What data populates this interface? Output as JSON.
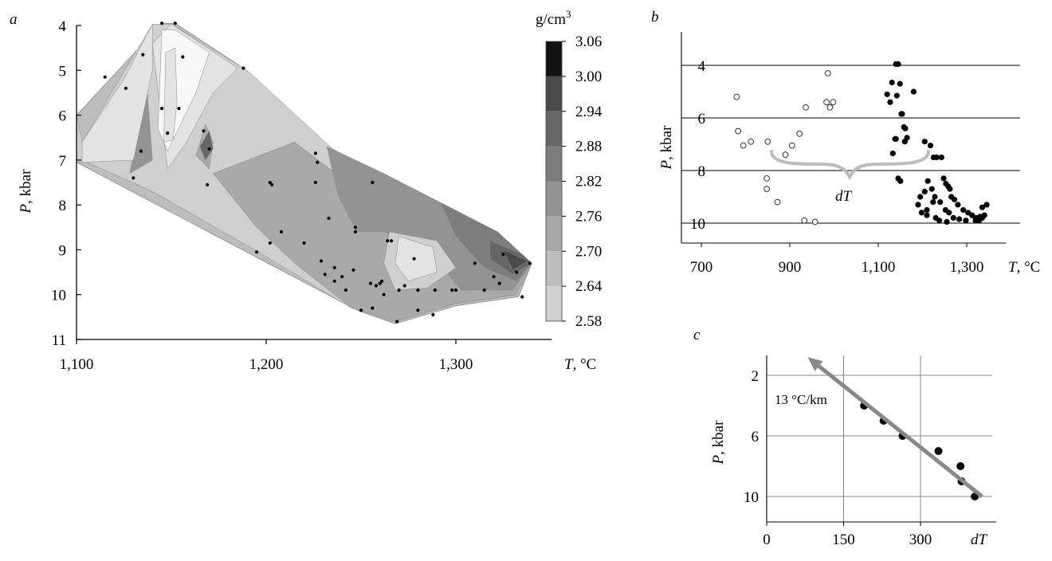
{
  "panel_letters": {
    "a": "a",
    "b": "b",
    "c": "c"
  },
  "colors": {
    "fill_levels": [
      "#e3e3e3",
      "#cfcfcf",
      "#bdbdbd",
      "#a9a9a9",
      "#939393",
      "#7d7d7d",
      "#666666",
      "#4a4a4a",
      "#222222"
    ],
    "highlight": "#f8f8f8",
    "curly": "#bcbcbc",
    "arrow": "#888888"
  },
  "chart_data": [
    {
      "id": "a",
      "type": "heatmap",
      "title": "",
      "xlabel_var": "T",
      "xlabel_unit": ", °C",
      "ylabel_var": "P",
      "ylabel_unit": ", kbar",
      "x_ticks": [
        1100,
        1200,
        1300
      ],
      "x_tick_labels": [
        "1,100",
        "1,200",
        "1,300"
      ],
      "y_ticks": [
        4,
        5,
        6,
        7,
        8,
        9,
        10,
        11
      ],
      "y_tick_labels": [
        "4",
        "5",
        "6",
        "7",
        "8",
        "9",
        "10",
        "11"
      ],
      "xlim": [
        1100,
        1370
      ],
      "ylim": [
        11,
        4
      ],
      "colorbar": {
        "unit_base": "g/cm",
        "unit_exp": "3",
        "levels": [
          3.06,
          3.0,
          2.94,
          2.88,
          2.82,
          2.76,
          2.7,
          2.64,
          2.58
        ],
        "level_labels": [
          "3.06",
          "3.00",
          "2.94",
          "2.88",
          "2.82",
          "2.76",
          "2.70",
          "2.64",
          "2.58"
        ]
      },
      "hull": [
        [
          1100,
          6.0
        ],
        [
          1145,
          3.95
        ],
        [
          1152,
          3.95
        ],
        [
          1188,
          4.95
        ],
        [
          1232,
          6.7
        ],
        [
          1300,
          8.3
        ],
        [
          1340,
          9.3
        ],
        [
          1333,
          10.05
        ],
        [
          1300,
          10.25
        ],
        [
          1268,
          10.65
        ],
        [
          1248,
          10.35
        ],
        [
          1100,
          7.05
        ]
      ],
      "regions": [
        {
          "level": 1,
          "points": [
            [
              1103,
              6.6
            ],
            [
              1140,
              3.97
            ],
            [
              1150,
              3.97
            ],
            [
              1190,
              5.0
            ],
            [
              1235,
              6.75
            ],
            [
              1305,
              8.3
            ],
            [
              1340,
              9.3
            ],
            [
              1333,
              10.0
            ],
            [
              1300,
              10.2
            ],
            [
              1268,
              10.6
            ],
            [
              1245,
              10.3
            ],
            [
              1198,
              9.1
            ],
            [
              1140,
              7.7
            ],
            [
              1103,
              7.0
            ]
          ]
        },
        {
          "level": 3,
          "points": [
            [
              1172,
              7.3
            ],
            [
              1215,
              6.6
            ],
            [
              1240,
              7.4
            ],
            [
              1278,
              8.1
            ],
            [
              1322,
              8.6
            ],
            [
              1340,
              9.3
            ],
            [
              1332,
              10.0
            ],
            [
              1300,
              10.2
            ],
            [
              1268,
              10.6
            ],
            [
              1245,
              10.3
            ],
            [
              1215,
              9.3
            ],
            [
              1195,
              8.5
            ]
          ]
        },
        {
          "level": 4,
          "points": [
            [
              1232,
              6.7
            ],
            [
              1262,
              7.3
            ],
            [
              1292,
              7.95
            ],
            [
              1320,
              8.6
            ],
            [
              1340,
              9.3
            ],
            [
              1330,
              9.9
            ],
            [
              1303,
              9.9
            ],
            [
              1285,
              9.0
            ],
            [
              1262,
              8.6
            ],
            [
              1248,
              8.6
            ],
            [
              1238,
              7.8
            ]
          ]
        },
        {
          "level": 4,
          "points": [
            [
              1128,
              7.3
            ],
            [
              1133,
              6.3
            ],
            [
              1136,
              4.7
            ],
            [
              1140,
              7.0
            ]
          ]
        },
        {
          "level": 5,
          "points": [
            [
              1292,
              7.95
            ],
            [
              1322,
              8.6
            ],
            [
              1340,
              9.3
            ],
            [
              1332,
              9.7
            ],
            [
              1315,
              9.4
            ],
            [
              1300,
              8.7
            ]
          ]
        },
        {
          "level": 6,
          "points": [
            [
              1318,
              8.8
            ],
            [
              1335,
              9.1
            ],
            [
              1340,
              9.3
            ],
            [
              1330,
              9.55
            ],
            [
              1318,
              9.2
            ]
          ]
        },
        {
          "level": 7,
          "points": [
            [
              1325,
              9.0
            ],
            [
              1338,
              9.25
            ],
            [
              1330,
              9.45
            ]
          ]
        },
        {
          "level": 3,
          "points": [
            [
              1163,
              6.9
            ],
            [
              1168,
              6.2
            ],
            [
              1172,
              6.6
            ],
            [
              1170,
              7.2
            ]
          ]
        },
        {
          "level": 6,
          "points": [
            [
              1165,
              6.7
            ],
            [
              1170,
              6.35
            ],
            [
              1172,
              6.75
            ],
            [
              1168,
              7.0
            ]
          ]
        },
        {
          "level": 1,
          "points": [
            [
              1265,
              8.6
            ],
            [
              1290,
              8.8
            ],
            [
              1300,
              9.4
            ],
            [
              1285,
              9.85
            ],
            [
              1268,
              9.9
            ],
            [
              1262,
              9.3
            ]
          ]
        },
        {
          "level": 0,
          "points": [
            [
              1270,
              8.7
            ],
            [
              1288,
              8.95
            ],
            [
              1290,
              9.5
            ],
            [
              1275,
              9.7
            ],
            [
              1268,
              9.3
            ]
          ]
        },
        {
          "level": 0,
          "points": [
            [
              1103,
              6.6
            ],
            [
              1125,
              5.2
            ],
            [
              1140,
              3.97
            ],
            [
              1140,
              5.0
            ],
            [
              1130,
              7.0
            ],
            [
              1103,
              7.05
            ]
          ]
        },
        {
          "level": 0,
          "points": [
            [
              1140,
              4.4
            ],
            [
              1150,
              3.97
            ],
            [
              1185,
              4.95
            ],
            [
              1172,
              5.5
            ],
            [
              1158,
              6.6
            ],
            [
              1148,
              7.2
            ]
          ]
        },
        {
          "level": -1,
          "points": [
            [
              1145,
              4.1
            ],
            [
              1152,
              4.1
            ],
            [
              1170,
              4.6
            ],
            [
              1163,
              5.5
            ],
            [
              1155,
              6.2
            ],
            [
              1148,
              6.8
            ],
            [
              1143,
              6.3
            ]
          ]
        },
        {
          "level": 0,
          "points": [
            [
              1147,
              4.6
            ],
            [
              1152,
              4.5
            ],
            [
              1153,
              5.7
            ],
            [
              1151,
              6.55
            ],
            [
              1146,
              6.6
            ]
          ]
        },
        {
          "level": 1,
          "points": [
            [
              1100,
              6.0
            ],
            [
              1103,
              6.6
            ],
            [
              1103,
              7.05
            ],
            [
              1100,
              7.05
            ]
          ]
        }
      ],
      "points_x": [
        1145,
        1152,
        1115,
        1126,
        1135,
        1156,
        1145,
        1154,
        1148,
        1167,
        1170,
        1130,
        1134,
        1169,
        1188,
        1202,
        1203,
        1195,
        1208,
        1202,
        1226,
        1227,
        1226,
        1220,
        1233,
        1229,
        1236,
        1240,
        1231,
        1236,
        1242,
        1246,
        1247,
        1255,
        1258,
        1260,
        1261,
        1256,
        1264,
        1262,
        1266,
        1270,
        1273,
        1278,
        1280,
        1288,
        1298,
        1310,
        1315,
        1320,
        1323,
        1325,
        1332,
        1335,
        1339,
        1250,
        1256,
        1247,
        1269,
        1280,
        1289,
        1300
      ],
      "points_y": [
        3.95,
        3.95,
        5.15,
        5.4,
        4.65,
        4.7,
        5.85,
        5.85,
        6.4,
        6.35,
        6.75,
        7.4,
        6.8,
        7.55,
        4.95,
        7.5,
        7.55,
        9.05,
        8.6,
        8.85,
        6.85,
        7.05,
        7.5,
        8.85,
        8.3,
        9.25,
        9.4,
        9.6,
        9.55,
        9.7,
        9.9,
        9.45,
        8.5,
        9.75,
        9.8,
        9.75,
        9.7,
        7.5,
        8.8,
        10.0,
        8.8,
        9.9,
        9.8,
        9.2,
        10.35,
        10.45,
        9.9,
        9.3,
        9.9,
        9.6,
        9.75,
        9.1,
        9.5,
        10.05,
        9.3,
        10.35,
        10.3,
        8.6,
        10.6,
        9.9,
        9.9,
        9.9
      ]
    },
    {
      "id": "b",
      "type": "scatter",
      "title": "",
      "xlabel_var": "T",
      "xlabel_unit": ", °C",
      "ylabel_var": "P",
      "ylabel_unit": ", kbar",
      "x_ticks": [
        700,
        900,
        1100,
        1300
      ],
      "x_tick_labels": [
        "700",
        "900",
        "1,100",
        "1,300"
      ],
      "y_ticks": [
        4,
        6,
        8,
        10
      ],
      "y_tick_labels": [
        "4",
        "6",
        "8",
        "10"
      ],
      "xlim": [
        700,
        1375
      ],
      "ylim": [
        10.9,
        3.6
      ],
      "grid": "horizontal",
      "annotation": "dT",
      "open_x": [
        780,
        783,
        795,
        812,
        850,
        848,
        848,
        872,
        890,
        905,
        922,
        936,
        983,
        986,
        998,
        991,
        933,
        957
      ],
      "open_y": [
        5.2,
        6.5,
        7.05,
        6.9,
        6.9,
        8.3,
        8.7,
        9.2,
        7.4,
        7.05,
        6.6,
        5.6,
        5.4,
        4.3,
        5.4,
        5.6,
        9.9,
        9.95
      ],
      "filled_x": [
        1140,
        1145,
        1120,
        1131,
        1149,
        1152,
        1154,
        1161,
        1158,
        1165,
        1127,
        1133,
        1145,
        1140,
        1142,
        1150,
        1138,
        1160,
        1180,
        1205,
        1218,
        1225,
        1232,
        1243,
        1248,
        1253,
        1258,
        1262,
        1265,
        1272,
        1280,
        1292,
        1303,
        1312,
        1320,
        1328,
        1335,
        1340,
        1345,
        1198,
        1210,
        1230,
        1238,
        1255,
        1210,
        1228,
        1240,
        1252,
        1260,
        1270,
        1283,
        1298,
        1320,
        1330,
        1335,
        1190,
        1195,
        1205,
        1212,
        1221,
        1224
      ],
      "filled_y": [
        3.95,
        3.95,
        5.1,
        4.65,
        4.7,
        5.85,
        5.85,
        6.4,
        6.35,
        6.75,
        5.4,
        7.35,
        8.3,
        6.8,
        5.15,
        8.4,
        6.8,
        6.9,
        5.0,
        6.9,
        7.05,
        7.5,
        7.5,
        7.5,
        8.3,
        8.5,
        8.6,
        8.7,
        9.0,
        9.1,
        9.3,
        9.5,
        9.6,
        9.7,
        9.8,
        9.9,
        9.8,
        9.7,
        9.3,
        9.6,
        9.7,
        9.8,
        9.9,
        9.95,
        9.5,
        9.0,
        9.2,
        9.5,
        9.6,
        9.8,
        9.85,
        9.9,
        9.9,
        9.75,
        9.4,
        9.3,
        9.0,
        8.8,
        8.4,
        8.7,
        9.2
      ]
    },
    {
      "id": "c",
      "type": "scatter",
      "title": "",
      "xlabel": "dT",
      "ylabel_var": "P",
      "ylabel_unit": ", kbar",
      "x_ticks": [
        0,
        150,
        300
      ],
      "x_tick_labels": [
        "0",
        "150",
        "300"
      ],
      "y_ticks": [
        2,
        6,
        10
      ],
      "y_tick_labels": [
        "2",
        "6",
        "10"
      ],
      "xlim": [
        0,
        450
      ],
      "ylim": [
        11.5,
        0
      ],
      "grid": "both",
      "annotation": "13 °C/km",
      "points_x": [
        190,
        228,
        265,
        335,
        378,
        380,
        406
      ],
      "points_y": [
        4.0,
        5.0,
        6.0,
        7.0,
        8.0,
        9.0,
        10.0
      ],
      "arrow_from": [
        420,
        10.0
      ],
      "arrow_to": [
        80,
        0.8
      ]
    }
  ]
}
